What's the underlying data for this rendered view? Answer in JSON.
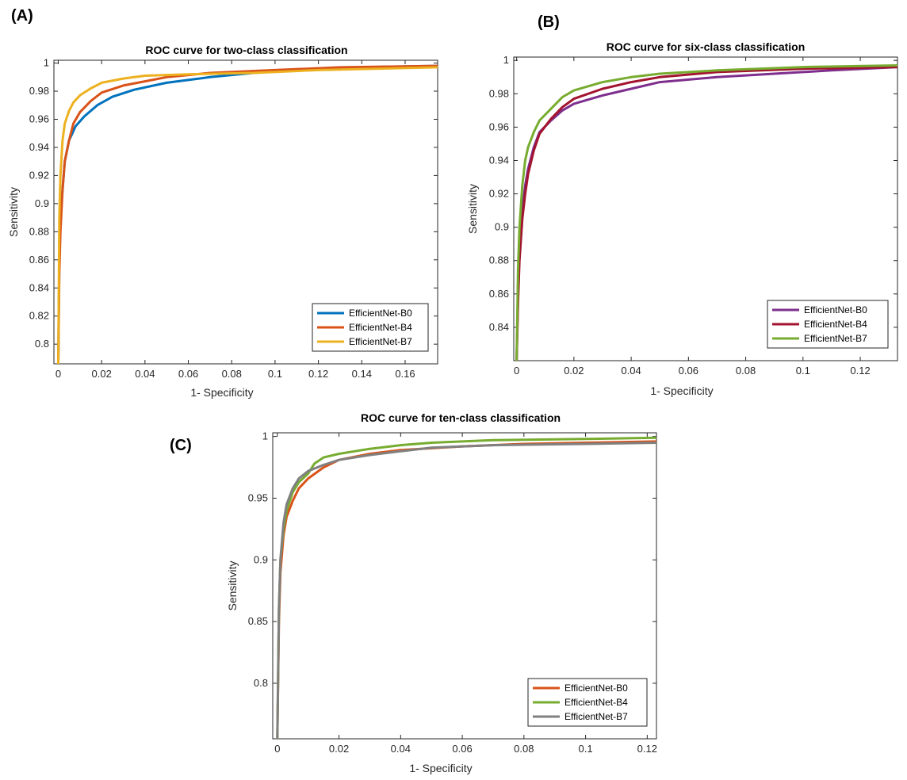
{
  "chart_data": [
    {
      "panel": "(A)",
      "type": "line",
      "title": "ROC curve for two-class classification",
      "xlabel": "1- Specificity",
      "ylabel": "Sensitivity",
      "xlim": [
        -0.002,
        0.175
      ],
      "ylim": [
        0.786,
        1.002
      ],
      "xticks": [
        0,
        0.02,
        0.04,
        0.06,
        0.08,
        0.1,
        0.12,
        0.14,
        0.16
      ],
      "xtick_labels": [
        "0",
        "0.02",
        "0.04",
        "0.06",
        "0.08",
        "0.1",
        "0.12",
        "0.14",
        "0.16"
      ],
      "yticks": [
        0.8,
        0.82,
        0.84,
        0.86,
        0.88,
        0.9,
        0.92,
        0.94,
        0.96,
        0.98,
        1
      ],
      "ytick_labels": [
        "0.8",
        "0.82",
        "0.84",
        "0.86",
        "0.88",
        "0.9",
        "0.92",
        "0.94",
        "0.96",
        "0.98",
        "1"
      ],
      "legend_position": "bottom-right",
      "series": [
        {
          "name": "EfficientNet-B0",
          "color": "#0072BD",
          "x": [
            0,
            0.0005,
            0.001,
            0.002,
            0.003,
            0.005,
            0.008,
            0.012,
            0.018,
            0.025,
            0.035,
            0.05,
            0.07,
            0.09,
            0.11,
            0.14,
            0.175
          ],
          "y": [
            0.786,
            0.86,
            0.89,
            0.91,
            0.93,
            0.945,
            0.955,
            0.962,
            0.97,
            0.976,
            0.981,
            0.986,
            0.99,
            0.993,
            0.995,
            0.997,
            0.998
          ]
        },
        {
          "name": "EfficientNet-B4",
          "color": "#D95319",
          "x": [
            0,
            0.0005,
            0.001,
            0.002,
            0.003,
            0.005,
            0.007,
            0.01,
            0.015,
            0.02,
            0.03,
            0.04,
            0.05,
            0.07,
            0.1,
            0.13,
            0.175
          ],
          "y": [
            0.786,
            0.85,
            0.88,
            0.91,
            0.93,
            0.945,
            0.957,
            0.965,
            0.973,
            0.979,
            0.984,
            0.987,
            0.99,
            0.993,
            0.995,
            0.997,
            0.998
          ]
        },
        {
          "name": "EfficientNet-B7",
          "color": "#EDB120",
          "x": [
            0,
            0.0005,
            0.001,
            0.002,
            0.003,
            0.005,
            0.007,
            0.01,
            0.015,
            0.02,
            0.03,
            0.04,
            0.06,
            0.09,
            0.12,
            0.175
          ],
          "y": [
            0.786,
            0.89,
            0.92,
            0.945,
            0.957,
            0.966,
            0.972,
            0.977,
            0.982,
            0.986,
            0.989,
            0.991,
            0.992,
            0.993,
            0.995,
            0.997
          ]
        }
      ]
    },
    {
      "panel": "(B)",
      "type": "line",
      "title": "ROC curve for six-class classification",
      "xlabel": "1- Specificity",
      "ylabel": "Sensitivity",
      "xlim": [
        -0.001,
        0.133
      ],
      "ylim": [
        0.82,
        1.002
      ],
      "xticks": [
        0,
        0.02,
        0.04,
        0.06,
        0.08,
        0.1,
        0.12
      ],
      "xtick_labels": [
        "0",
        "0.02",
        "0.04",
        "0.06",
        "0.08",
        "0.1",
        "0.12"
      ],
      "yticks": [
        0.84,
        0.86,
        0.88,
        0.9,
        0.92,
        0.94,
        0.96,
        0.98,
        1
      ],
      "ytick_labels": [
        "0.84",
        "0.86",
        "0.88",
        "0.9",
        "0.92",
        "0.94",
        "0.96",
        "0.98",
        "1"
      ],
      "legend_position": "bottom-right",
      "series": [
        {
          "name": "EfficientNet-B0",
          "color": "#7E2F8E",
          "x": [
            0,
            0.0005,
            0.001,
            0.002,
            0.003,
            0.004,
            0.006,
            0.008,
            0.012,
            0.016,
            0.02,
            0.03,
            0.04,
            0.05,
            0.07,
            0.09,
            0.11,
            0.133
          ],
          "y": [
            0.82,
            0.86,
            0.885,
            0.91,
            0.925,
            0.935,
            0.948,
            0.957,
            0.964,
            0.97,
            0.974,
            0.979,
            0.983,
            0.987,
            0.99,
            0.992,
            0.994,
            0.996
          ]
        },
        {
          "name": "EfficientNet-B4",
          "color": "#A2142F",
          "x": [
            0,
            0.0005,
            0.001,
            0.002,
            0.003,
            0.004,
            0.006,
            0.008,
            0.012,
            0.016,
            0.02,
            0.03,
            0.04,
            0.05,
            0.07,
            0.1,
            0.133
          ],
          "y": [
            0.82,
            0.855,
            0.88,
            0.905,
            0.92,
            0.932,
            0.946,
            0.956,
            0.965,
            0.972,
            0.977,
            0.983,
            0.987,
            0.99,
            0.993,
            0.995,
            0.996
          ]
        },
        {
          "name": "EfficientNet-B7",
          "color": "#77AC30",
          "x": [
            0,
            0.0005,
            0.001,
            0.002,
            0.003,
            0.004,
            0.006,
            0.008,
            0.012,
            0.016,
            0.02,
            0.03,
            0.04,
            0.05,
            0.07,
            0.1,
            0.133
          ],
          "y": [
            0.82,
            0.875,
            0.9,
            0.925,
            0.94,
            0.948,
            0.957,
            0.964,
            0.971,
            0.978,
            0.982,
            0.987,
            0.99,
            0.992,
            0.994,
            0.996,
            0.997
          ]
        }
      ]
    },
    {
      "panel": "(C)",
      "type": "line",
      "title": "ROC curve for ten-class classification",
      "xlabel": "1- Specificity",
      "ylabel": "Sensitivity",
      "xlim": [
        -0.0015,
        0.123
      ],
      "ylim": [
        0.755,
        1.003
      ],
      "xticks": [
        0,
        0.02,
        0.04,
        0.06,
        0.08,
        0.1,
        0.12
      ],
      "xtick_labels": [
        "0",
        "0.02",
        "0.04",
        "0.06",
        "0.08",
        "0.1",
        "0.12"
      ],
      "yticks": [
        0.8,
        0.85,
        0.9,
        0.95,
        1
      ],
      "ytick_labels": [
        "0.8",
        "0.85",
        "0.9",
        "0.95",
        "1"
      ],
      "legend_position": "bottom-right",
      "series": [
        {
          "name": "EfficientNet-B0",
          "color": "#D95319",
          "x": [
            0,
            0.0005,
            0.001,
            0.002,
            0.003,
            0.005,
            0.007,
            0.01,
            0.015,
            0.02,
            0.03,
            0.04,
            0.06,
            0.08,
            0.1,
            0.123
          ],
          "y": [
            0.755,
            0.85,
            0.89,
            0.92,
            0.935,
            0.948,
            0.958,
            0.966,
            0.975,
            0.981,
            0.986,
            0.989,
            0.992,
            0.994,
            0.995,
            0.996
          ]
        },
        {
          "name": "EfficientNet-B4",
          "color": "#77AC30",
          "x": [
            0,
            0.0005,
            0.001,
            0.002,
            0.003,
            0.005,
            0.007,
            0.01,
            0.012,
            0.015,
            0.02,
            0.03,
            0.04,
            0.05,
            0.07,
            0.1,
            0.123
          ],
          "y": [
            0.755,
            0.86,
            0.9,
            0.925,
            0.94,
            0.955,
            0.963,
            0.97,
            0.978,
            0.983,
            0.986,
            0.99,
            0.993,
            0.995,
            0.997,
            0.998,
            0.999
          ]
        },
        {
          "name": "EfficientNet-B7",
          "color": "#808080",
          "x": [
            0,
            0.0005,
            0.001,
            0.002,
            0.003,
            0.005,
            0.007,
            0.01,
            0.015,
            0.02,
            0.03,
            0.04,
            0.05,
            0.07,
            0.1,
            0.123
          ],
          "y": [
            0.755,
            0.86,
            0.9,
            0.93,
            0.945,
            0.958,
            0.966,
            0.972,
            0.977,
            0.981,
            0.985,
            0.988,
            0.991,
            0.993,
            0.994,
            0.995
          ]
        }
      ]
    }
  ]
}
